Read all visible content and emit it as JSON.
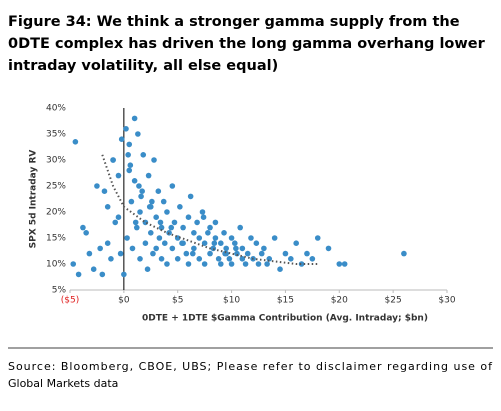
{
  "chart_data": {
    "type": "scatter",
    "title": [
      "Figure 34: We think a stronger gamma supply from the",
      "0DTE complex has driven the long gamma overhang lower",
      "intraday volatility, all else equal)"
    ],
    "x_label": "0DTE + 1DTE $Gamma Contribution (Avg. Intraday; $bn)",
    "y_label": "SPX 5d Intraday RV",
    "source": [
      "Source: Bloomberg, CBOE, UBS; Please refer to disclaimer regarding use of",
      "Global Markets data"
    ],
    "xlim": [
      -5,
      30
    ],
    "xticks": [
      {
        "value": -5,
        "label": "($5)"
      },
      {
        "value": 0,
        "label": "$0"
      },
      {
        "value": 5,
        "label": "$5"
      },
      {
        "value": 10,
        "label": "$10"
      },
      {
        "value": 15,
        "label": "$15"
      },
      {
        "value": 20,
        "label": "$20"
      },
      {
        "value": 25,
        "label": "$25"
      },
      {
        "value": 30,
        "label": "$30"
      }
    ],
    "ylim": [
      5,
      40
    ],
    "yticks": [
      {
        "value": 5,
        "label": "5%"
      },
      {
        "value": 10,
        "label": "10%"
      },
      {
        "value": 15,
        "label": "15%"
      },
      {
        "value": 20,
        "label": "20%"
      },
      {
        "value": 25,
        "label": "25%"
      },
      {
        "value": 30,
        "label": "30%"
      },
      {
        "value": 35,
        "label": "35%"
      },
      {
        "value": 40,
        "label": "40%"
      }
    ],
    "grid": false,
    "series": [
      {
        "color": "#3a8dc8",
        "x": [
          -4.5,
          -4.7,
          -4.2,
          -3.8,
          -3.5,
          -3.2,
          -2.8,
          -2.5,
          -2.2,
          -2.0,
          -1.8,
          -1.5,
          -1.2,
          -1.0,
          -0.8,
          -0.5,
          -0.3,
          -0.2,
          0,
          0.2,
          0.3,
          0.5,
          0.5,
          0.7,
          0.8,
          1.0,
          1.0,
          1.2,
          1.3,
          1.5,
          1.5,
          1.7,
          1.8,
          2.0,
          2.0,
          2.2,
          2.3,
          2.5,
          2.5,
          2.7,
          2.8,
          3.0,
          3.0,
          3.2,
          3.3,
          3.5,
          3.5,
          3.7,
          3.8,
          4.0,
          4.0,
          4.2,
          4.5,
          4.5,
          4.7,
          5.0,
          5.0,
          5.2,
          5.5,
          5.5,
          5.8,
          6.0,
          6.0,
          6.2,
          6.5,
          6.5,
          6.8,
          7.0,
          7.0,
          7.3,
          7.5,
          7.5,
          7.8,
          8.0,
          8.0,
          8.3,
          8.5,
          8.5,
          8.8,
          9.0,
          9.0,
          9.3,
          9.5,
          9.5,
          9.8,
          10.0,
          10.0,
          10.3,
          10.5,
          10.8,
          11.0,
          11.0,
          11.3,
          11.5,
          11.8,
          12.0,
          12.3,
          12.5,
          12.8,
          13.0,
          13.3,
          13.5,
          14.0,
          14.5,
          15.0,
          15.5,
          16.0,
          16.5,
          17.0,
          17.5,
          18.0,
          19.0,
          20.0,
          20.5,
          26.0,
          -1.5,
          -0.5,
          0.4,
          1.1,
          1.6,
          2.4,
          3.4,
          4.4,
          5.4,
          6.4,
          7.4,
          8.4,
          9.4,
          10.4,
          0.6,
          1.4,
          2.6,
          -1.0
        ],
        "values": [
          33.5,
          10,
          8,
          17,
          16,
          12,
          9,
          25,
          13,
          8,
          24,
          14,
          11,
          30,
          18,
          19,
          12,
          34,
          8,
          36,
          15,
          28,
          33,
          22,
          13,
          26,
          38,
          17,
          35,
          20,
          11,
          24,
          31,
          14,
          18,
          9,
          27,
          16,
          21,
          12,
          30,
          19,
          13,
          24,
          15,
          17,
          11,
          22,
          14,
          20,
          10,
          16,
          25,
          13,
          18,
          15,
          11,
          21,
          14,
          17,
          12,
          19,
          10,
          23,
          13,
          16,
          18,
          11,
          15,
          20,
          14,
          10,
          16,
          12,
          17,
          13,
          15,
          18,
          11,
          14,
          10,
          16,
          12,
          13,
          11,
          15,
          10,
          14,
          12,
          17,
          11,
          13,
          10,
          12,
          15,
          11,
          14,
          10,
          12,
          13,
          10,
          11,
          15,
          9,
          12,
          11,
          14,
          10,
          12,
          11,
          15,
          13,
          10,
          10,
          12,
          21,
          27,
          31,
          18,
          23,
          21,
          18,
          17,
          14,
          12,
          19,
          14,
          12,
          13,
          29,
          25,
          22,
          30
        ]
      }
    ],
    "trendline": {
      "color": "#555555",
      "x": [
        -2,
        -1,
        0,
        2,
        4,
        6,
        8,
        10,
        12,
        14,
        16,
        18
      ],
      "values": [
        31,
        25,
        21,
        18,
        16,
        14.5,
        13,
        12,
        11,
        10.5,
        10,
        10
      ]
    }
  }
}
